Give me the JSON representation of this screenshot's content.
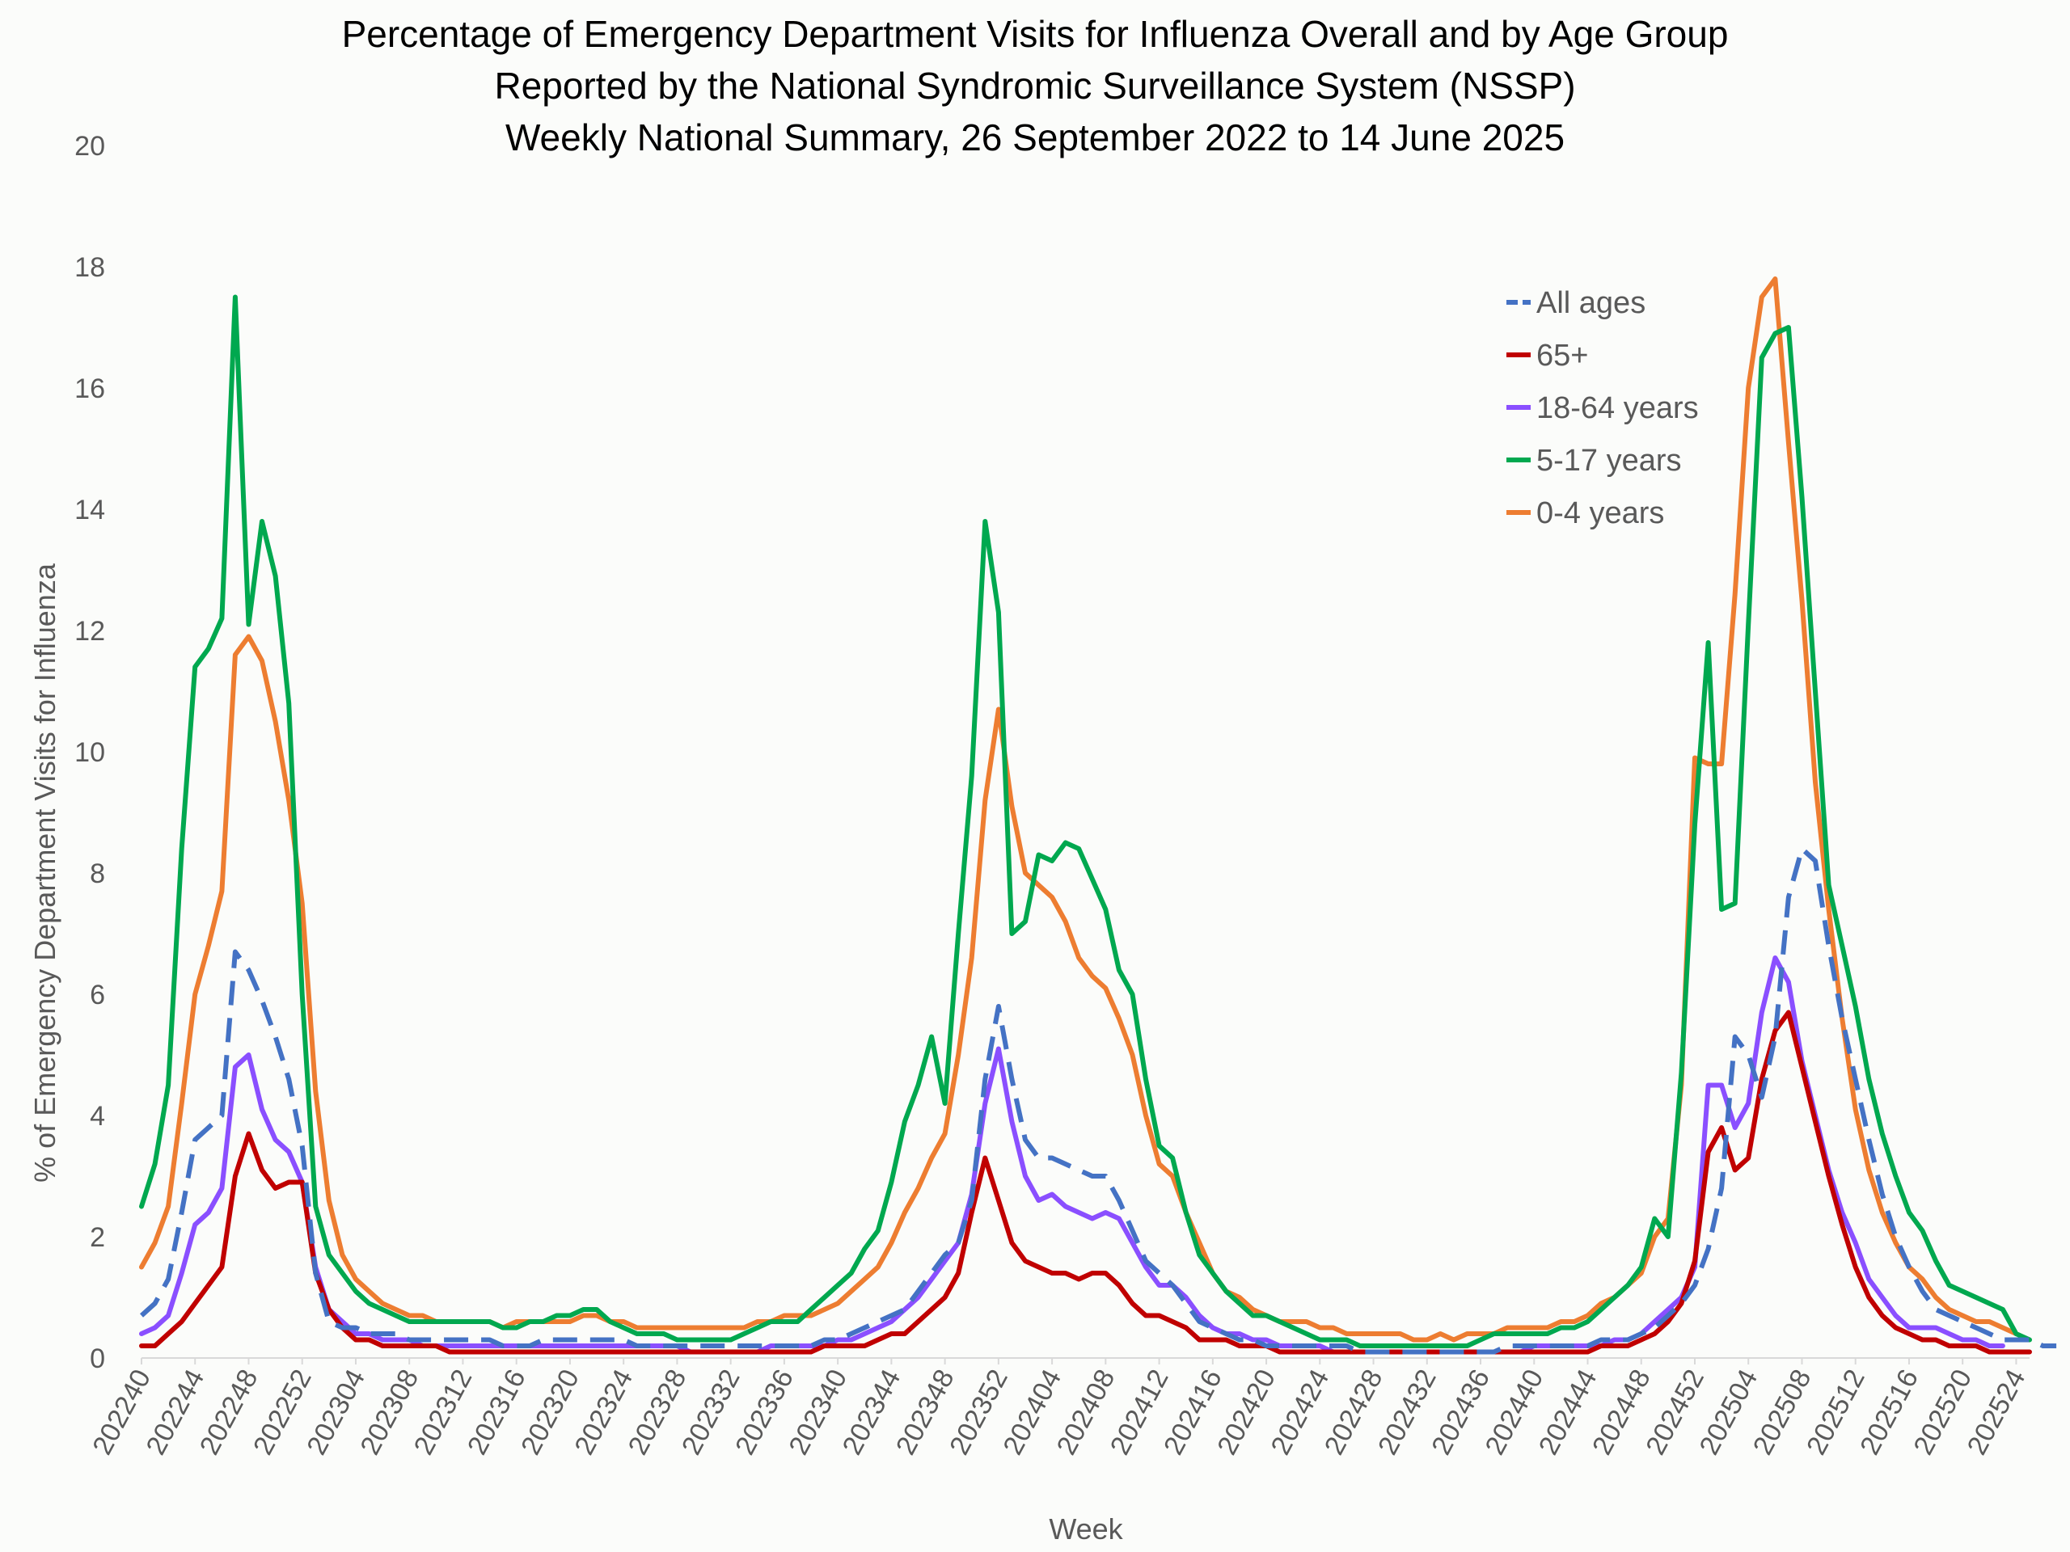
{
  "chart_data": {
    "type": "line",
    "title": [
      "Percentage of Emergency Department Visits for Influenza Overall and by Age Group",
      "Reported by the National Syndromic Surveillance System (NSSP)",
      "Weekly National Summary, 26 September 2022 to 14 June 2025"
    ],
    "xlabel": "Week",
    "ylabel": "% of Emergency Department Visits for Influenza",
    "ylim": [
      0,
      20
    ],
    "yticks": [
      "0",
      "2",
      "4",
      "6",
      "8",
      "10",
      "12",
      "14",
      "16",
      "18",
      "20"
    ],
    "x_tick_labels": [
      "202240",
      "202244",
      "202248",
      "202252",
      "202304",
      "202308",
      "202312",
      "202316",
      "202320",
      "202324",
      "202328",
      "202332",
      "202336",
      "202340",
      "202344",
      "202348",
      "202352",
      "202404",
      "202408",
      "202412",
      "202416",
      "202420",
      "202424",
      "202428",
      "202432",
      "202436",
      "202440",
      "202444",
      "202448",
      "202452",
      "202504",
      "202508",
      "202512",
      "202516",
      "202520",
      "202524"
    ],
    "weeks_total": 142,
    "legend_position": "top-right",
    "series": [
      {
        "name": "All ages",
        "color": "#4472c4",
        "dash": "dashed",
        "values": [
          0.7,
          0.9,
          1.3,
          2.4,
          3.6,
          3.8,
          4.0,
          6.7,
          6.4,
          5.9,
          5.3,
          4.6,
          3.5,
          1.4,
          0.6,
          0.5,
          0.5,
          0.4,
          0.4,
          0.4,
          0.3,
          0.3,
          0.3,
          0.3,
          0.3,
          0.3,
          0.3,
          0.2,
          0.2,
          0.2,
          0.3,
          0.3,
          0.3,
          0.3,
          0.3,
          0.3,
          0.3,
          0.2,
          0.2,
          0.2,
          0.2,
          0.2,
          0.2,
          0.2,
          0.2,
          0.2,
          0.2,
          0.2,
          0.2,
          0.2,
          0.2,
          0.3,
          0.3,
          0.4,
          0.5,
          0.6,
          0.7,
          0.8,
          1.1,
          1.4,
          1.7,
          1.9,
          2.6,
          4.6,
          5.8,
          4.6,
          3.6,
          3.3,
          3.3,
          3.2,
          3.1,
          3.0,
          3.0,
          2.6,
          2.1,
          1.6,
          1.4,
          1.2,
          0.9,
          0.6,
          0.5,
          0.4,
          0.3,
          0.3,
          0.2,
          0.2,
          0.2,
          0.2,
          0.2,
          0.2,
          0.2,
          0.1,
          0.1,
          0.1,
          0.1,
          0.1,
          0.1,
          0.1,
          0.1,
          0.1,
          0.1,
          0.1,
          0.2,
          0.2,
          0.2,
          0.2,
          0.2,
          0.2,
          0.2,
          0.3,
          0.3,
          0.3,
          0.4,
          0.5,
          0.7,
          0.9,
          1.2,
          1.8,
          2.8,
          5.3,
          5.0,
          4.3,
          5.3,
          7.6,
          8.4,
          8.2,
          6.8,
          5.6,
          4.6,
          3.6,
          2.7,
          2.0,
          1.5,
          1.1,
          0.8,
          0.7,
          0.6,
          0.5,
          0.4,
          0.3,
          0.3,
          0.3,
          0.2,
          0.2
        ]
      },
      {
        "name": "65+",
        "color": "#c00000",
        "dash": "solid",
        "values": [
          0.2,
          0.2,
          0.4,
          0.6,
          0.9,
          1.2,
          1.5,
          3.0,
          3.7,
          3.1,
          2.8,
          2.9,
          2.9,
          1.4,
          0.8,
          0.5,
          0.3,
          0.3,
          0.2,
          0.2,
          0.2,
          0.2,
          0.2,
          0.1,
          0.1,
          0.1,
          0.1,
          0.1,
          0.1,
          0.1,
          0.1,
          0.1,
          0.1,
          0.1,
          0.1,
          0.1,
          0.1,
          0.1,
          0.1,
          0.1,
          0.1,
          0.1,
          0.1,
          0.1,
          0.1,
          0.1,
          0.1,
          0.1,
          0.1,
          0.1,
          0.1,
          0.2,
          0.2,
          0.2,
          0.2,
          0.3,
          0.4,
          0.4,
          0.6,
          0.8,
          1.0,
          1.4,
          2.4,
          3.3,
          2.6,
          1.9,
          1.6,
          1.5,
          1.4,
          1.4,
          1.3,
          1.4,
          1.4,
          1.2,
          0.9,
          0.7,
          0.7,
          0.6,
          0.5,
          0.3,
          0.3,
          0.3,
          0.2,
          0.2,
          0.2,
          0.1,
          0.1,
          0.1,
          0.1,
          0.1,
          0.1,
          0.1,
          0.1,
          0.1,
          0.1,
          0.1,
          0.1,
          0.1,
          0.1,
          0.1,
          0.1,
          0.1,
          0.1,
          0.1,
          0.1,
          0.1,
          0.1,
          0.1,
          0.1,
          0.2,
          0.2,
          0.2,
          0.3,
          0.4,
          0.6,
          0.9,
          1.6,
          3.4,
          3.8,
          3.1,
          3.3,
          4.6,
          5.4,
          5.7,
          4.8,
          3.9,
          3.0,
          2.2,
          1.5,
          1.0,
          0.7,
          0.5,
          0.4,
          0.3,
          0.3,
          0.2,
          0.2,
          0.2,
          0.1,
          0.1,
          0.1,
          0.1
        ]
      },
      {
        "name": "18-64 years",
        "color": "#8a4fff",
        "dash": "solid",
        "values": [
          0.4,
          0.5,
          0.7,
          1.4,
          2.2,
          2.4,
          2.8,
          4.8,
          5.0,
          4.1,
          3.6,
          3.4,
          2.9,
          1.5,
          0.8,
          0.6,
          0.4,
          0.4,
          0.3,
          0.3,
          0.3,
          0.2,
          0.2,
          0.2,
          0.2,
          0.2,
          0.2,
          0.2,
          0.2,
          0.2,
          0.2,
          0.2,
          0.2,
          0.2,
          0.2,
          0.2,
          0.2,
          0.2,
          0.2,
          0.2,
          0.2,
          0.1,
          0.1,
          0.1,
          0.1,
          0.1,
          0.1,
          0.2,
          0.2,
          0.2,
          0.2,
          0.2,
          0.3,
          0.3,
          0.4,
          0.5,
          0.6,
          0.8,
          1.0,
          1.3,
          1.6,
          1.9,
          2.7,
          4.2,
          5.1,
          3.9,
          3.0,
          2.6,
          2.7,
          2.5,
          2.4,
          2.3,
          2.4,
          2.3,
          1.9,
          1.5,
          1.2,
          1.2,
          1.0,
          0.7,
          0.5,
          0.4,
          0.4,
          0.3,
          0.3,
          0.2,
          0.2,
          0.2,
          0.2,
          0.1,
          0.1,
          0.1,
          0.1,
          0.1,
          0.1,
          0.1,
          0.1,
          0.1,
          0.1,
          0.1,
          0.1,
          0.1,
          0.1,
          0.1,
          0.2,
          0.2,
          0.2,
          0.2,
          0.2,
          0.2,
          0.3,
          0.3,
          0.4,
          0.6,
          0.8,
          1.0,
          1.5,
          4.5,
          4.5,
          3.8,
          4.2,
          5.7,
          6.6,
          6.2,
          4.9,
          4.0,
          3.1,
          2.4,
          1.9,
          1.3,
          1.0,
          0.7,
          0.5,
          0.5,
          0.5,
          0.4,
          0.3,
          0.3,
          0.2,
          0.2
        ]
      },
      {
        "name": "5-17 years",
        "color": "#00a84f",
        "dash": "solid",
        "values": [
          2.5,
          3.2,
          4.5,
          8.4,
          11.4,
          11.7,
          12.2,
          17.5,
          12.1,
          13.8,
          12.9,
          10.8,
          6.0,
          2.5,
          1.7,
          1.4,
          1.1,
          0.9,
          0.8,
          0.7,
          0.6,
          0.6,
          0.6,
          0.6,
          0.6,
          0.6,
          0.6,
          0.5,
          0.5,
          0.6,
          0.6,
          0.7,
          0.7,
          0.8,
          0.8,
          0.6,
          0.5,
          0.4,
          0.4,
          0.4,
          0.3,
          0.3,
          0.3,
          0.3,
          0.3,
          0.4,
          0.5,
          0.6,
          0.6,
          0.6,
          0.8,
          1.0,
          1.2,
          1.4,
          1.8,
          2.1,
          2.9,
          3.9,
          4.5,
          5.3,
          4.2,
          7.0,
          9.6,
          13.8,
          12.3,
          7.0,
          7.2,
          8.3,
          8.2,
          8.5,
          8.4,
          7.9,
          7.4,
          6.4,
          6.0,
          4.6,
          3.5,
          3.3,
          2.4,
          1.7,
          1.4,
          1.1,
          0.9,
          0.7,
          0.7,
          0.6,
          0.5,
          0.4,
          0.3,
          0.3,
          0.3,
          0.2,
          0.2,
          0.2,
          0.2,
          0.2,
          0.2,
          0.2,
          0.2,
          0.2,
          0.3,
          0.4,
          0.4,
          0.4,
          0.4,
          0.4,
          0.5,
          0.5,
          0.6,
          0.8,
          1.0,
          1.2,
          1.5,
          2.3,
          2.0,
          4.7,
          8.8,
          11.8,
          7.4,
          7.5,
          12.1,
          16.5,
          16.9,
          17.0,
          14.2,
          11.0,
          7.8,
          6.8,
          5.8,
          4.6,
          3.7,
          3.0,
          2.4,
          2.1,
          1.6,
          1.2,
          1.1,
          1.0,
          0.9,
          0.8,
          0.4,
          0.3
        ]
      },
      {
        "name": "0-4 years",
        "color": "#ed7d31",
        "dash": "solid",
        "values": [
          1.5,
          1.9,
          2.5,
          4.2,
          6.0,
          6.8,
          7.7,
          11.6,
          11.9,
          11.5,
          10.5,
          9.2,
          7.5,
          4.4,
          2.6,
          1.7,
          1.3,
          1.1,
          0.9,
          0.8,
          0.7,
          0.7,
          0.6,
          0.6,
          0.6,
          0.6,
          0.6,
          0.5,
          0.6,
          0.6,
          0.6,
          0.6,
          0.6,
          0.7,
          0.7,
          0.6,
          0.6,
          0.5,
          0.5,
          0.5,
          0.5,
          0.5,
          0.5,
          0.5,
          0.5,
          0.5,
          0.6,
          0.6,
          0.7,
          0.7,
          0.7,
          0.8,
          0.9,
          1.1,
          1.3,
          1.5,
          1.9,
          2.4,
          2.8,
          3.3,
          3.7,
          5.0,
          6.6,
          9.2,
          10.7,
          9.1,
          8.0,
          7.8,
          7.6,
          7.2,
          6.6,
          6.3,
          6.1,
          5.6,
          5.0,
          4.0,
          3.2,
          3.0,
          2.4,
          1.9,
          1.4,
          1.1,
          1.0,
          0.8,
          0.7,
          0.6,
          0.6,
          0.6,
          0.5,
          0.5,
          0.4,
          0.4,
          0.4,
          0.4,
          0.4,
          0.3,
          0.3,
          0.4,
          0.3,
          0.4,
          0.4,
          0.4,
          0.5,
          0.5,
          0.5,
          0.5,
          0.6,
          0.6,
          0.7,
          0.9,
          1.0,
          1.2,
          1.4,
          2.0,
          2.3,
          4.5,
          9.9,
          9.8,
          9.8,
          12.6,
          16.0,
          17.5,
          17.8,
          15.1,
          12.5,
          9.5,
          7.4,
          5.6,
          4.1,
          3.1,
          2.4,
          1.9,
          1.5,
          1.3,
          1.0,
          0.8,
          0.7,
          0.6,
          0.6,
          0.5,
          0.4
        ]
      }
    ]
  }
}
